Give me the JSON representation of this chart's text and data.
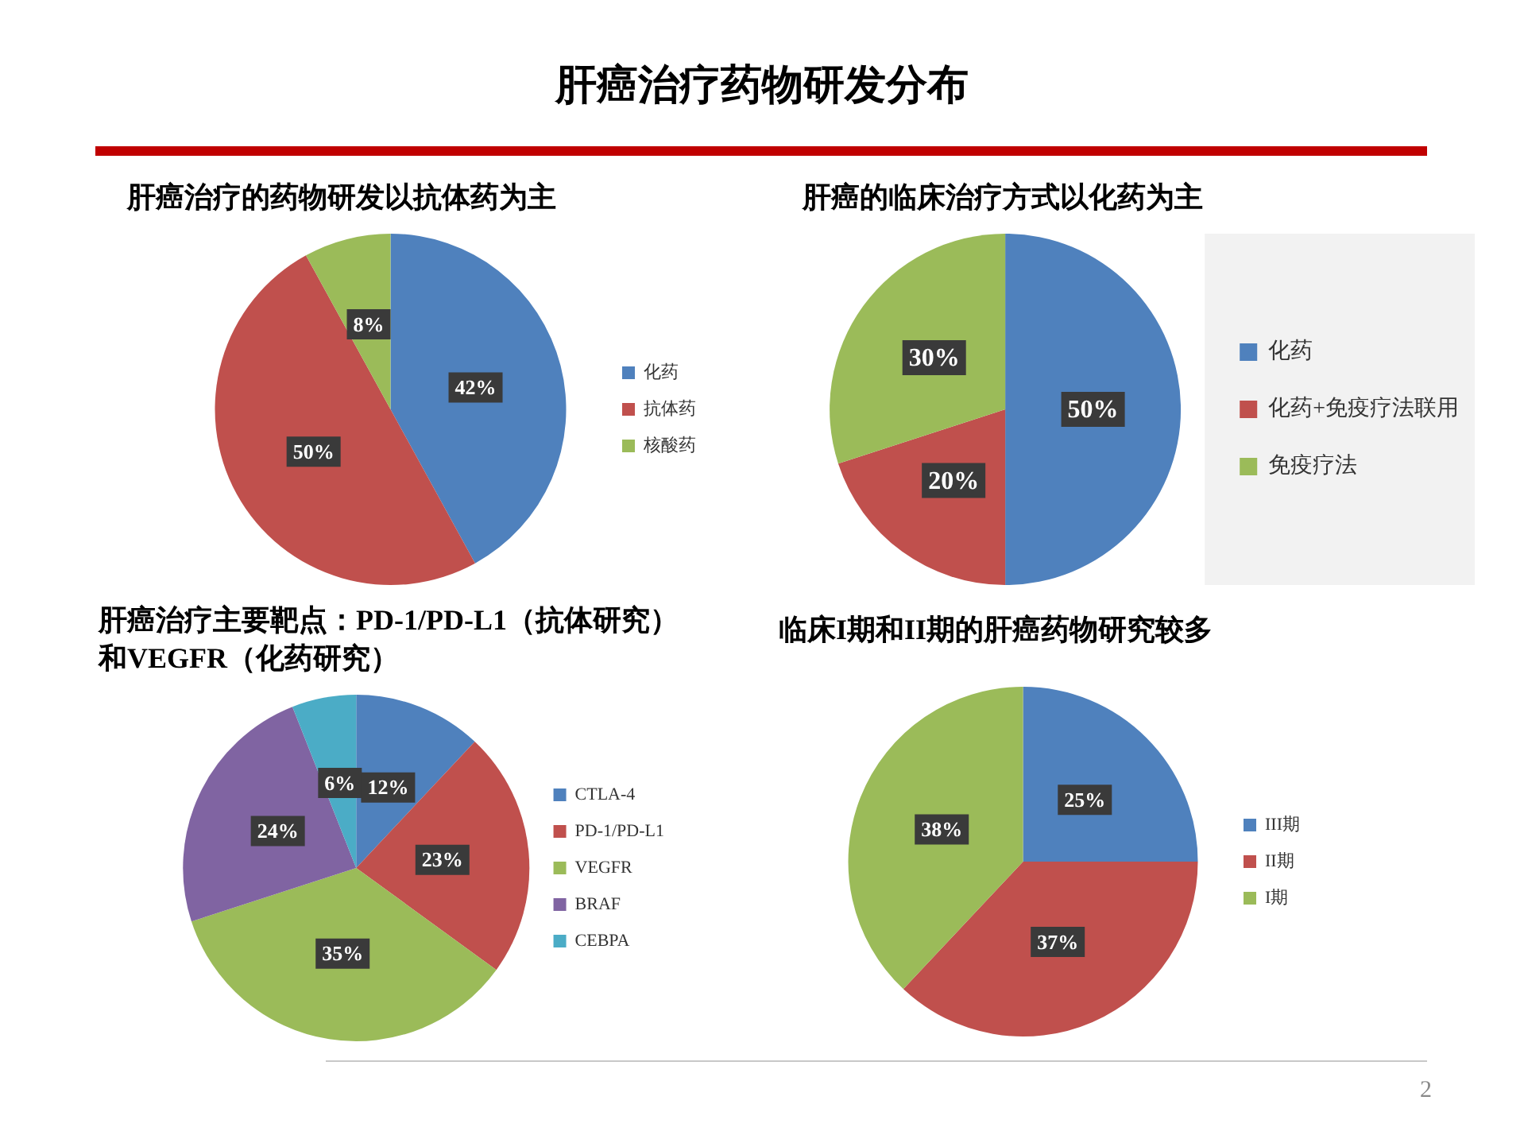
{
  "chart_data": [
    {
      "type": "other",
      "title": "肝癌治疗药物研发分布",
      "annotations": [
        "2"
      ]
    },
    {
      "type": "pie",
      "title": "肝癌治疗的药物研发以抗体药为主",
      "categories": [
        "化药",
        "抗体药",
        "核酸药"
      ],
      "values": [
        42,
        50,
        8
      ],
      "colors": [
        "#4f81bd",
        "#c0504d",
        "#9bbb59"
      ],
      "value_labels": [
        "42%",
        "50%",
        "8%"
      ],
      "legend": "right"
    },
    {
      "type": "pie",
      "title": "肝癌的临床治疗方式以化药为主",
      "categories": [
        "化药",
        "化药+免疫疗法联用",
        "免疫疗法"
      ],
      "values": [
        50,
        20,
        30
      ],
      "colors": [
        "#4f81bd",
        "#c0504d",
        "#9bbb59"
      ],
      "value_labels": [
        "50%",
        "20%",
        "30%"
      ],
      "legend": "right"
    },
    {
      "type": "pie",
      "title": "肝癌治疗主要靶点：PD-1/PD-L1（抗体研究）和VEGFR（化药研究）",
      "categories": [
        "CTLA-4",
        "PD-1/PD-L1",
        "VEGFR",
        "BRAF",
        "CEBPA"
      ],
      "values": [
        12,
        23,
        35,
        24,
        6
      ],
      "colors": [
        "#4f81bd",
        "#c0504d",
        "#9bbb59",
        "#8064a2",
        "#4bacc6"
      ],
      "value_labels": [
        "12%",
        "23%",
        "35%",
        "24%",
        "6%"
      ],
      "legend": "right"
    },
    {
      "type": "pie",
      "title": "临床I期和II期的肝癌药物研究较多",
      "categories": [
        "III期",
        "II期",
        "I期"
      ],
      "values": [
        25,
        37,
        38
      ],
      "colors": [
        "#4f81bd",
        "#c0504d",
        "#9bbb59"
      ],
      "value_labels": [
        "25%",
        "37%",
        "38%"
      ],
      "legend": "right"
    }
  ]
}
